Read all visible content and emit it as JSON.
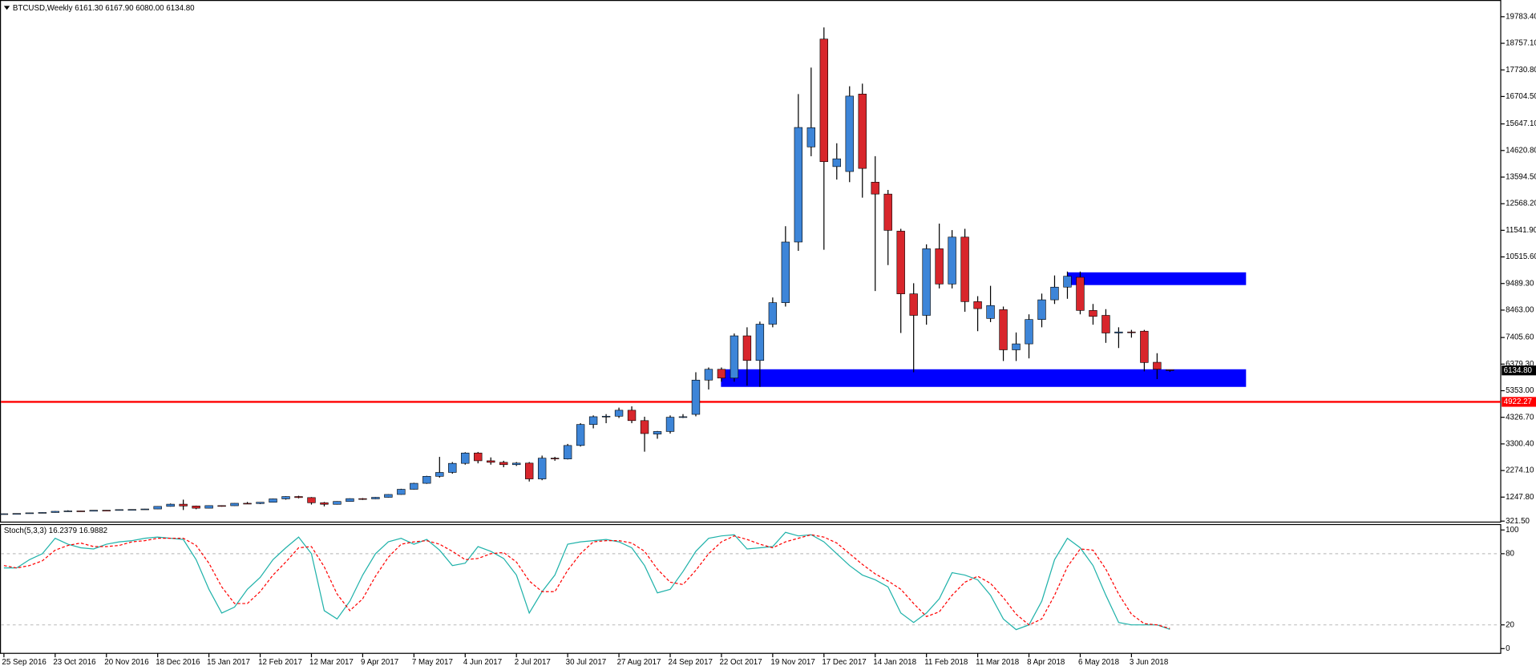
{
  "chart_data": [
    {
      "type": "candlestick",
      "title": "BTCUSD,Weekly  6161.30 6167.90 6080.00 6134.80",
      "categories": [
        "25 Sep 2016",
        null,
        null,
        null,
        "23 Oct 2016",
        null,
        null,
        null,
        "20 Nov 2016",
        null,
        null,
        null,
        "18 Dec 2016",
        null,
        null,
        null,
        "15 Jan 2017",
        null,
        null,
        null,
        "12 Feb 2017",
        null,
        null,
        null,
        "12 Mar 2017",
        null,
        null,
        null,
        "9 Apr 2017",
        null,
        null,
        null,
        "7 May 2017",
        null,
        null,
        null,
        "4 Jun 2017",
        null,
        null,
        null,
        "2 Jul 2017",
        null,
        null,
        null,
        "30 Jul 2017",
        null,
        null,
        null,
        "27 Aug 2017",
        null,
        null,
        null,
        "24 Sep 2017",
        null,
        null,
        null,
        "22 Oct 2017",
        null,
        null,
        null,
        "19 Nov 2017",
        null,
        null,
        null,
        "17 Dec 2017",
        null,
        null,
        null,
        "14 Jan 2018",
        null,
        null,
        null,
        "11 Feb 2018",
        null,
        null,
        null,
        "11 Mar 2018",
        null,
        null,
        null,
        "8 Apr 2018",
        null,
        null,
        null,
        "6 May 2018",
        null,
        null,
        null,
        "3 Jun 2018",
        null,
        null,
        null
      ],
      "open": [
        600,
        606,
        615,
        640,
        655,
        700,
        715,
        705,
        740,
        735,
        765,
        770,
        790,
        890,
        975,
        905,
        820,
        920,
        915,
        1010,
        1000,
        1050,
        1180,
        1270,
        1230,
        1030,
        970,
        1080,
        1190,
        1180,
        1240,
        1350,
        1550,
        1780,
        2050,
        2200,
        2550,
        2950,
        2650,
        2590,
        2500,
        2560,
        1950,
        2750,
        2720,
        3240,
        4050,
        4350,
        4370,
        4600,
        4200,
        3680,
        3780,
        4330,
        4440,
        5763,
        6180,
        5840,
        7470,
        6520,
        7920,
        8750,
        11090,
        14760,
        18920,
        14000,
        13810,
        16800,
        13400,
        12940,
        11510,
        9090,
        8260,
        10830,
        9470,
        11280,
        8790,
        8140,
        8480,
        6930,
        7160,
        8100,
        8860,
        9350,
        9730,
        8450,
        8260,
        7580,
        7620,
        7650,
        6450,
        6161.3
      ],
      "high": [
        612,
        620,
        642,
        660,
        710,
        740,
        720,
        745,
        748,
        768,
        775,
        795,
        900,
        1000,
        1150,
        920,
        925,
        930,
        1015,
        1060,
        1055,
        1190,
        1280,
        1300,
        1250,
        1060,
        1090,
        1200,
        1210,
        1250,
        1360,
        1570,
        1800,
        2070,
        2800,
        2600,
        2980,
        2990,
        2780,
        2650,
        2600,
        2600,
        2850,
        2800,
        3300,
        4100,
        4400,
        4450,
        4700,
        4750,
        4350,
        3800,
        4400,
        4450,
        6066,
        6250,
        6250,
        7560,
        7800,
        8020,
        8950,
        11700,
        16800,
        17820,
        19370,
        14900,
        17100,
        17200,
        14400,
        13100,
        11600,
        9500,
        11000,
        11800,
        11550,
        11600,
        9000,
        9400,
        8600,
        7600,
        8300,
        9100,
        9800,
        9950,
        9950,
        8700,
        8500,
        7800,
        7700,
        7700,
        6800,
        6167.9
      ],
      "low": [
        593,
        600,
        612,
        630,
        650,
        685,
        690,
        700,
        725,
        730,
        755,
        765,
        785,
        880,
        750,
        780,
        815,
        880,
        910,
        990,
        980,
        1040,
        1150,
        1200,
        960,
        890,
        960,
        1070,
        1140,
        1170,
        1230,
        1340,
        1540,
        1760,
        2000,
        2150,
        2500,
        2550,
        2500,
        2400,
        2450,
        1850,
        1900,
        2650,
        2700,
        3200,
        3900,
        4100,
        4300,
        4100,
        3000,
        3500,
        3700,
        4300,
        4365,
        5400,
        5700,
        5700,
        5550,
        5500,
        7800,
        8600,
        10750,
        14400,
        10790,
        13500,
        13400,
        12800,
        9200,
        10200,
        7580,
        6065,
        7900,
        9300,
        9300,
        8400,
        7650,
        8000,
        6500,
        6500,
        6600,
        7800,
        8700,
        8900,
        8300,
        7900,
        7200,
        7000,
        7400,
        6100,
        5800,
        6080
      ],
      "close": [
        606,
        615,
        640,
        655,
        700,
        715,
        705,
        740,
        735,
        765,
        770,
        790,
        890,
        975,
        905,
        820,
        920,
        915,
        1010,
        1000,
        1050,
        1180,
        1270,
        1230,
        1030,
        970,
        1080,
        1190,
        1180,
        1240,
        1350,
        1550,
        1780,
        2050,
        2200,
        2550,
        2950,
        2650,
        2590,
        2500,
        2560,
        1950,
        2750,
        2720,
        3240,
        4050,
        4350,
        4370,
        4600,
        4200,
        3700,
        3780,
        4330,
        4350,
        5763,
        6180,
        5840,
        7470,
        6520,
        7920,
        8750,
        11090,
        15510,
        15500,
        14190,
        14300,
        16720,
        13930,
        12940,
        11540,
        9090,
        8260,
        10830,
        9470,
        11280,
        8790,
        8520,
        8640,
        6930,
        7160,
        8100,
        8860,
        9350,
        9770,
        8450,
        8220,
        7580,
        7620,
        7600,
        6440,
        6180,
        6134.8
      ],
      "up_color": "#3d85d8",
      "down_color": "#d8262c",
      "ylim": [
        284,
        20390
      ],
      "yticks": [
        {
          "value": 321.5,
          "label": "321.50"
        },
        {
          "value": 1247.8,
          "label": "1247.80"
        },
        {
          "value": 2274.1,
          "label": "2274.10"
        },
        {
          "value": 3300.4,
          "label": "3300.40"
        },
        {
          "value": 4326.7,
          "label": "4326.70"
        },
        {
          "value": 5353,
          "label": "5353.00"
        },
        {
          "value": 6379.3,
          "label": "6379.30"
        },
        {
          "value": 7405.6,
          "label": "7405.60"
        },
        {
          "value": 8463,
          "label": "8463.00"
        },
        {
          "value": 9489.3,
          "label": "9489.30"
        },
        {
          "value": 10515.6,
          "label": "10515.60"
        },
        {
          "value": 11541.9,
          "label": "11541.90"
        },
        {
          "value": 12568.2,
          "label": "12568.20"
        },
        {
          "value": 13594.5,
          "label": "13594.50"
        },
        {
          "value": 14620.8,
          "label": "14620.80"
        },
        {
          "value": 15647.1,
          "label": "15647.10"
        },
        {
          "value": 16704.5,
          "label": "16704.50"
        },
        {
          "value": 17730.8,
          "label": "17730.80"
        },
        {
          "value": 18757.1,
          "label": "18757.10"
        },
        {
          "value": 19783.4,
          "label": "19783.40"
        }
      ],
      "zones": [
        {
          "low": 9429,
          "high": 9920
        },
        {
          "low": 5500,
          "high": 6180
        }
      ],
      "zone_color": "#0000ff",
      "current_price": {
        "value": 6134.8,
        "label": "6134.80"
      },
      "hline": {
        "value": 4922.27,
        "label": "4922.27",
        "color": "#ff0000"
      }
    },
    {
      "type": "line",
      "title": "Stoch(5,3,3) 16.2379 16.9882",
      "series": [
        {
          "color": "#20b2aa",
          "values": [
            68,
            68,
            75,
            80,
            93,
            88,
            85,
            84,
            88,
            90,
            91,
            93,
            94,
            93,
            92,
            75,
            50,
            30,
            35,
            50,
            60,
            75,
            85,
            94,
            80,
            32,
            25,
            40,
            62,
            80,
            90,
            93,
            88,
            92,
            83,
            70,
            72,
            86,
            82,
            76,
            62,
            30,
            48,
            62,
            88,
            90,
            91,
            92,
            90,
            85,
            70,
            47,
            50,
            65,
            82,
            93,
            95,
            96,
            84,
            85,
            86,
            98,
            95,
            96,
            90,
            80,
            70,
            62,
            58,
            52,
            30,
            22,
            30,
            42,
            64,
            62,
            58,
            45,
            25,
            16,
            20,
            40,
            75,
            93,
            85,
            70,
            45,
            22,
            20,
            20,
            20,
            16.2379
          ]
        },
        {
          "color": "#ff0000",
          "dashed": true,
          "values": [
            70,
            68,
            70,
            74,
            83,
            87,
            89,
            86,
            86,
            87,
            90,
            91,
            93,
            93,
            93,
            87,
            72,
            52,
            38,
            38,
            48,
            62,
            73,
            85,
            86,
            69,
            46,
            32,
            42,
            61,
            77,
            88,
            90,
            91,
            88,
            82,
            75,
            76,
            80,
            81,
            73,
            57,
            48,
            48,
            66,
            80,
            90,
            91,
            91,
            89,
            82,
            67,
            56,
            54,
            66,
            80,
            90,
            95,
            92,
            88,
            85,
            90,
            93,
            96,
            94,
            89,
            80,
            71,
            63,
            57,
            50,
            38,
            27,
            31,
            45,
            56,
            61,
            55,
            43,
            29,
            20,
            25,
            45,
            69,
            84,
            83,
            67,
            46,
            29,
            21,
            20,
            16.9882
          ]
        }
      ],
      "ylim": [
        -4,
        105
      ],
      "yticks": [
        0,
        20,
        80,
        100
      ],
      "levels": [
        20,
        80
      ]
    }
  ]
}
